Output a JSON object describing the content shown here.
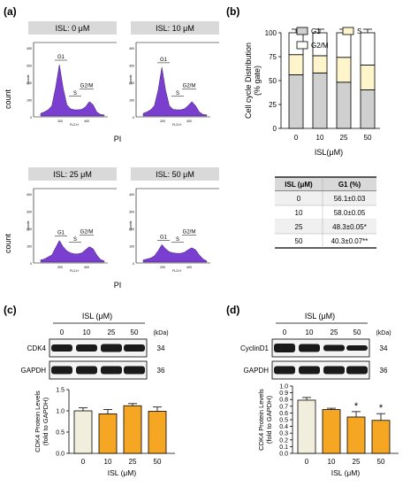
{
  "panels": {
    "a": "(a)",
    "b": "(b)",
    "c": "(c)",
    "d": "(d)"
  },
  "flow": {
    "plots": [
      {
        "title": "ISL: 0 μM",
        "shape": [
          0.05,
          0.08,
          0.12,
          0.2,
          0.55,
          1.0,
          0.55,
          0.22,
          0.14,
          0.12,
          0.12,
          0.13,
          0.18,
          0.28,
          0.22,
          0.08,
          0.03,
          0.02
        ]
      },
      {
        "title": "ISL: 10 μM",
        "shape": [
          0.05,
          0.08,
          0.12,
          0.2,
          0.5,
          0.95,
          0.5,
          0.2,
          0.13,
          0.12,
          0.12,
          0.14,
          0.2,
          0.28,
          0.2,
          0.08,
          0.03,
          0.02
        ]
      },
      {
        "title": "ISL: 25 μM",
        "shape": [
          0.04,
          0.06,
          0.1,
          0.14,
          0.28,
          0.42,
          0.3,
          0.22,
          0.18,
          0.16,
          0.16,
          0.18,
          0.24,
          0.3,
          0.26,
          0.14,
          0.05,
          0.02
        ]
      },
      {
        "title": "ISL: 50 μM",
        "shape": [
          0.04,
          0.06,
          0.08,
          0.12,
          0.22,
          0.34,
          0.26,
          0.2,
          0.18,
          0.17,
          0.17,
          0.19,
          0.24,
          0.28,
          0.24,
          0.14,
          0.06,
          0.02
        ]
      }
    ],
    "gate_labels": {
      "g1": "G1",
      "s": "S",
      "g2m": "G2/M"
    },
    "y_ticks": [
      "0",
      "100",
      "200",
      "300",
      "400"
    ],
    "x_ticks": [
      "200",
      "400"
    ],
    "inner_ylabel": "Counts",
    "inner_xlabel": "FL2-H",
    "count_label": "count",
    "pi_label": "PI"
  },
  "chart_data": [
    {
      "type": "bar",
      "stacked": true,
      "categories": [
        "0",
        "10",
        "25",
        "50"
      ],
      "series": [
        {
          "name": "G1",
          "values": [
            56.1,
            58.0,
            48.3,
            40.3
          ],
          "color": "#d0d0d0"
        },
        {
          "name": "S",
          "values": [
            21,
            18,
            26,
            26
          ],
          "color": "#fff5cc"
        },
        {
          "name": "G2/M",
          "values": [
            22.9,
            24.0,
            25.7,
            33.7
          ],
          "color": "#ffffff"
        }
      ],
      "ylabel": "Cell cycle Distribution\n(% gate)",
      "xlabel": "ISL(μM)",
      "ylim": [
        0,
        100
      ],
      "y_ticks": [
        0,
        25,
        50,
        75,
        100
      ]
    },
    {
      "type": "bar",
      "categories": [
        "0",
        "10",
        "25",
        "50"
      ],
      "values": [
        1.0,
        0.93,
        1.12,
        0.99
      ],
      "errors": [
        0.07,
        0.1,
        0.05,
        0.1
      ],
      "colors": [
        "#f2eedd",
        "#f5a623",
        "#f5a623",
        "#f5a623"
      ],
      "ylabel": "CDK4 Protein Levels\n(fold to GAPDH)",
      "xlabel": "ISL (μM)",
      "ylim": [
        0,
        1.5
      ],
      "y_ticks": [
        "0.0",
        "0.5",
        "1.0",
        "1.5"
      ]
    },
    {
      "type": "bar",
      "categories": [
        "0",
        "10",
        "25",
        "50"
      ],
      "values": [
        0.79,
        0.65,
        0.54,
        0.49
      ],
      "errors": [
        0.04,
        0.02,
        0.08,
        0.1
      ],
      "significance": [
        "",
        "",
        "*",
        "*"
      ],
      "colors": [
        "#f2eedd",
        "#f5a623",
        "#f5a623",
        "#f5a623"
      ],
      "ylabel": "CDK4 Protein Levels\n(fold to GAPDH)",
      "xlabel": "ISL (μM)",
      "ylim": [
        0,
        1.0
      ],
      "y_ticks": [
        "0.0",
        "0.1",
        "0.2",
        "0.3",
        "0.4",
        "0.5",
        "0.6",
        "0.7",
        "0.8",
        "0.9",
        "1.0"
      ]
    }
  ],
  "table": {
    "headers": [
      "ISL (μM)",
      "G1 (%)"
    ],
    "rows": [
      [
        "0",
        "56.1±0.03"
      ],
      [
        "10",
        "58.0±0.05"
      ],
      [
        "25",
        "48.3±0.05*"
      ],
      [
        "50",
        "40.3±0.07**"
      ]
    ]
  },
  "western": {
    "c": {
      "header": "ISL (μM)",
      "lanes": [
        "0",
        "10",
        "25",
        "50"
      ],
      "kda": "(kDa)",
      "rows": [
        {
          "label": "CDK4",
          "kda": "34"
        },
        {
          "label": "GAPDH",
          "kda": "36"
        }
      ]
    },
    "d": {
      "header": "ISL (μM)",
      "lanes": [
        "0",
        "10",
        "25",
        "50"
      ],
      "kda": "(kDa)",
      "rows": [
        {
          "label": "CyclinD1",
          "kda": "34"
        },
        {
          "label": "GAPDH",
          "kda": "36"
        }
      ]
    }
  },
  "colors": {
    "purple": "#7b3fd0",
    "orange": "#f5a623",
    "band": "#1a1a1a"
  }
}
